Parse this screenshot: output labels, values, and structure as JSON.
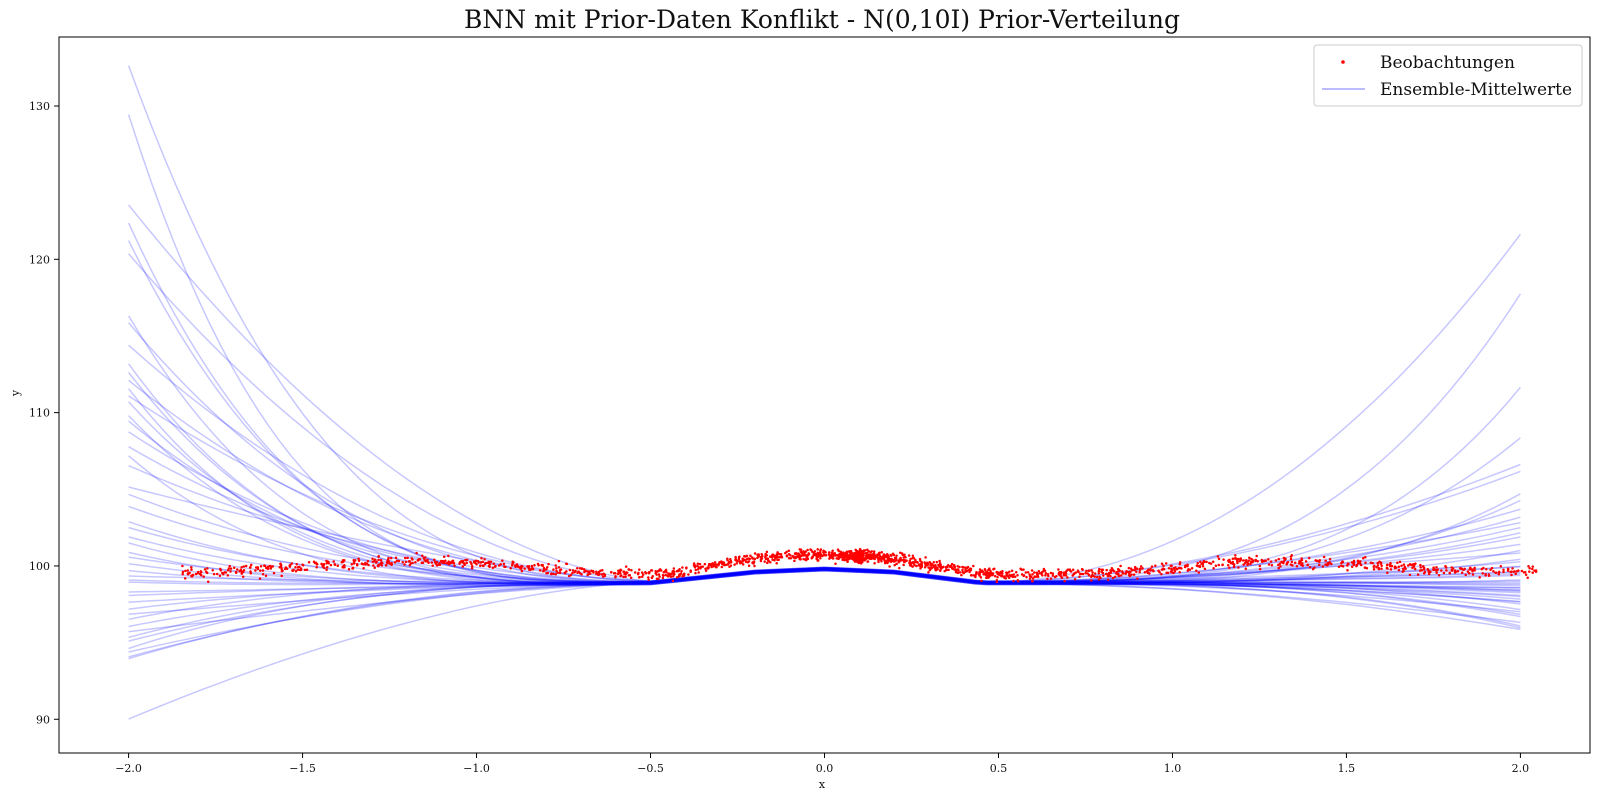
{
  "chart_data": {
    "type": "line",
    "title": "BNN mit Prior-Daten Konflikt - N(0,10I) Prior-Verteilung",
    "xlabel": "x",
    "ylabel": "y",
    "xlim": [
      -2.2,
      2.2
    ],
    "ylim": [
      87.8,
      134.5
    ],
    "xticks": [
      -2.0,
      -1.5,
      -1.0,
      -0.5,
      0.0,
      0.5,
      1.0,
      1.5,
      2.0
    ],
    "xtick_labels": [
      "−2.0",
      "−1.5",
      "−1.0",
      "−0.5",
      "0.0",
      "0.5",
      "1.0",
      "1.5",
      "2.0"
    ],
    "yticks": [
      90,
      100,
      110,
      120,
      130
    ],
    "ytick_labels": [
      "90",
      "100",
      "110",
      "120",
      "130"
    ],
    "grid": false,
    "legend": {
      "position": "top-right",
      "entries": [
        {
          "label": "Beobachtungen",
          "marker": "dot",
          "color": "#ff0000"
        },
        {
          "label": "Ensemble-Mittelwerte",
          "marker": "line",
          "color": "#0000ff"
        }
      ]
    },
    "colors": {
      "observations": "#ff0000",
      "ensemble": "#0000ff"
    },
    "observations": {
      "name": "Beobachtungen",
      "x_range": [
        -1.85,
        2.05
      ],
      "approx_count": 2000,
      "trend": {
        "x": [
          -1.85,
          -1.6,
          -1.4,
          -1.2,
          -1.0,
          -0.8,
          -0.6,
          -0.45,
          -0.3,
          -0.15,
          0.0,
          0.15,
          0.3,
          0.45,
          0.6,
          0.8,
          1.0,
          1.2,
          1.4,
          1.6,
          1.8,
          2.0
        ],
        "y": [
          99.5,
          99.8,
          100.1,
          100.3,
          100.2,
          99.8,
          99.5,
          99.4,
          100.1,
          100.6,
          100.7,
          100.6,
          100.1,
          99.5,
          99.4,
          99.5,
          99.8,
          100.3,
          100.2,
          100.0,
          99.7,
          99.6
        ]
      },
      "noise_sd": 0.18
    },
    "series": [
      {
        "name": "Ensemble-Mittelwerte",
        "x_range": [
          -2.0,
          2.0
        ],
        "count": 50,
        "opacity": 0.22
      }
    ],
    "ensemble_endpoints": {
      "y_at_x_minus_2": [
        132.6,
        129.4,
        123.5,
        122.4,
        121.2,
        120.3,
        116.4,
        115.9,
        114.3,
        113.2,
        112.7,
        112.1,
        111.5,
        111.0,
        110.7,
        109.9,
        109.4,
        108.8,
        107.8,
        107.3,
        106.5,
        105.2,
        104.6,
        103.8,
        103.0,
        102.5,
        101.9,
        101.5,
        101.0,
        100.6,
        100.2,
        99.7,
        99.3,
        98.9,
        98.4,
        98.0,
        97.7,
        97.2,
        96.8,
        96.4,
        96.1,
        95.7,
        95.3,
        95.0,
        94.6,
        94.4,
        94.1,
        94.0,
        89.9,
        99.0
      ],
      "y_at_x_plus_2": [
        121.6,
        117.7,
        111.6,
        108.4,
        106.6,
        106.1,
        104.8,
        104.3,
        103.6,
        103.2,
        102.9,
        102.5,
        102.1,
        101.8,
        101.4,
        101.1,
        100.8,
        100.5,
        100.3,
        100.1,
        99.9,
        99.7,
        99.5,
        99.3,
        99.2,
        99.0,
        98.9,
        98.8,
        98.7,
        98.6,
        98.5,
        98.4,
        98.3,
        98.2,
        98.1,
        98.0,
        97.9,
        97.7,
        97.6,
        97.4,
        97.2,
        97.0,
        96.8,
        96.6,
        96.3,
        96.1,
        96.0,
        95.9,
        98.6,
        99.4
      ]
    }
  }
}
